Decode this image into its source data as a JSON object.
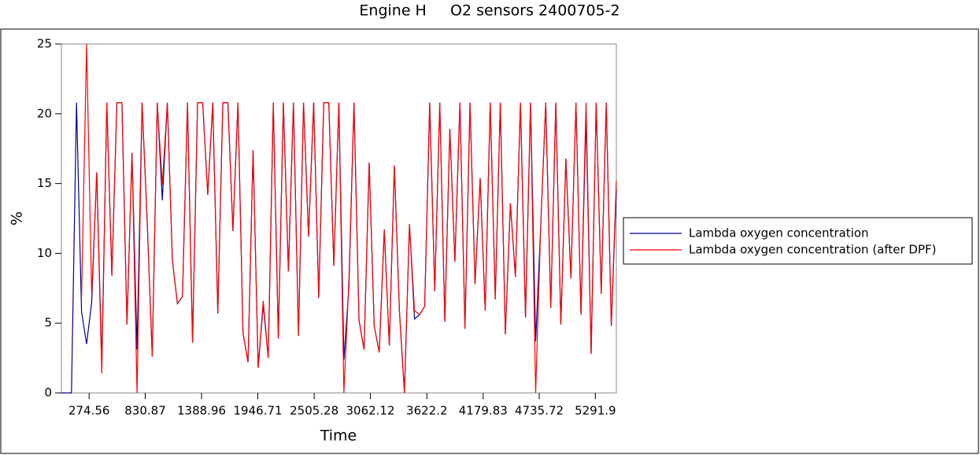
{
  "chart_data": {
    "type": "line",
    "title": "Engine H     O2 sensors 2400705-2",
    "xlabel": "Time",
    "ylabel": "%",
    "x": [
      0,
      50,
      100,
      150,
      200,
      250,
      300,
      350,
      400,
      450,
      500,
      550,
      600,
      650,
      700,
      750,
      800,
      850,
      900,
      950,
      1000,
      1050,
      1100,
      1150,
      1200,
      1250,
      1300,
      1350,
      1400,
      1450,
      1500,
      1550,
      1600,
      1650,
      1700,
      1750,
      1800,
      1850,
      1900,
      1950,
      2000,
      2050,
      2100,
      2150,
      2200,
      2250,
      2300,
      2350,
      2400,
      2450,
      2500,
      2550,
      2600,
      2650,
      2700,
      2750,
      2800,
      2850,
      2900,
      2950,
      3000,
      3050,
      3100,
      3150,
      3200,
      3250,
      3300,
      3350,
      3400,
      3450,
      3500,
      3550,
      3600,
      3650,
      3700,
      3750,
      3800,
      3850,
      3900,
      3950,
      4000,
      4050,
      4100,
      4150,
      4200,
      4250,
      4300,
      4350,
      4400,
      4450,
      4500,
      4550,
      4600,
      4650,
      4700,
      4750,
      4800,
      4850,
      4900,
      4950,
      5000,
      5050,
      5100,
      5150,
      5200,
      5250,
      5300,
      5350,
      5400,
      5450,
      5500
    ],
    "series": [
      {
        "name": "Lambda oxygen concentration",
        "color": "#00008b",
        "values": [
          0,
          0,
          0,
          20.8,
          5.8,
          3.5,
          6.5,
          15.8,
          2.1,
          20.8,
          8.4,
          20.8,
          20.8,
          4.9,
          17.2,
          3.1,
          20.8,
          12.3,
          2.6,
          20.8,
          13.8,
          20.8,
          9.5,
          6.4,
          6.9,
          20.8,
          3.6,
          20.8,
          20.8,
          14.2,
          20.8,
          5.7,
          20.8,
          20.8,
          11.6,
          20.8,
          4.3,
          2.2,
          17.4,
          1.8,
          6.3,
          2.5,
          20.8,
          3.9,
          20.8,
          8.7,
          20.8,
          4.1,
          20.8,
          11.2,
          20.8,
          6.8,
          20.8,
          20.8,
          9.1,
          20.8,
          2.4,
          7.6,
          20.8,
          5.2,
          3.1,
          16.5,
          4.8,
          2.9,
          11.7,
          3.4,
          16.3,
          5.9,
          0.0,
          12.1,
          5.3,
          5.6,
          6.2,
          20.8,
          7.3,
          20.8,
          5.1,
          18.9,
          9.4,
          20.8,
          4.6,
          20.8,
          7.8,
          15.4,
          5.9,
          20.8,
          6.7,
          20.8,
          4.2,
          13.6,
          8.3,
          20.8,
          5.4,
          20.8,
          3.7,
          11.9,
          20.8,
          6.1,
          20.8,
          4.9,
          16.8,
          8.2,
          20.8,
          5.6,
          19.7,
          2.8,
          20.8,
          7.1,
          20.8,
          4.8,
          14.6
        ]
      },
      {
        "name": "Lambda oxygen concentration (after DPF)",
        "color": "#ff0000",
        "values": [
          null,
          null,
          null,
          null,
          6.9,
          25,
          7.0,
          15.8,
          1.4,
          20.8,
          8.4,
          20.8,
          20.8,
          4.9,
          17.2,
          0.0,
          20.8,
          12.3,
          2.6,
          20.8,
          14.9,
          20.8,
          9.5,
          6.4,
          6.9,
          20.8,
          3.6,
          20.8,
          20.8,
          14.2,
          20.8,
          5.7,
          20.8,
          20.8,
          11.6,
          20.8,
          4.3,
          2.2,
          17.4,
          1.8,
          6.6,
          2.5,
          20.8,
          3.9,
          20.8,
          8.7,
          20.8,
          4.1,
          20.8,
          11.2,
          20.8,
          6.8,
          20.8,
          20.8,
          9.1,
          20.8,
          0.0,
          8.1,
          20.8,
          5.2,
          3.1,
          16.5,
          4.8,
          2.9,
          11.7,
          3.4,
          16.3,
          5.9,
          0.0,
          12.1,
          5.9,
          5.6,
          6.2,
          20.8,
          7.3,
          20.8,
          5.1,
          18.9,
          9.4,
          20.8,
          4.6,
          20.8,
          7.8,
          15.4,
          5.9,
          20.8,
          6.7,
          20.8,
          4.2,
          13.6,
          8.3,
          20.8,
          5.4,
          20.8,
          0.0,
          11.9,
          20.8,
          6.1,
          20.8,
          4.9,
          16.8,
          8.2,
          20.8,
          5.6,
          20.8,
          2.8,
          20.8,
          7.1,
          20.8,
          4.8,
          15.2
        ]
      }
    ],
    "xlim": [
      0,
      5500
    ],
    "xticks": [
      274.56,
      830.87,
      1388.96,
      1946.71,
      2505.28,
      3062.12,
      3622.2,
      4179.83,
      4735.72,
      5291.9
    ],
    "ylim": [
      0,
      25
    ],
    "yticks": [
      0,
      5,
      10,
      15,
      20,
      25
    ],
    "legend": "right"
  }
}
